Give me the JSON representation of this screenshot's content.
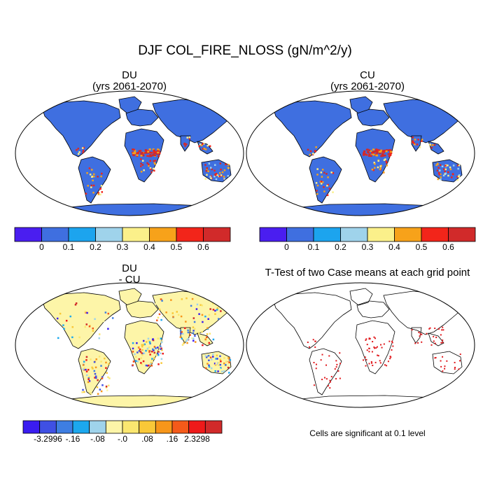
{
  "figure": {
    "title": "DJF COL_FIRE_NLOSS (gN/m^2/y)"
  },
  "panels": {
    "du": {
      "title": "DU",
      "subtitle": "(yrs 2061-2070)"
    },
    "cu": {
      "title": "CU",
      "subtitle": "(yrs 2061-2070)"
    },
    "diff": {
      "title": "DU",
      "subtitle": "- CU"
    },
    "ttest": {
      "title": "T-Test of two Case means at each grid point",
      "note": "Cells are significant at 0.1 level"
    }
  },
  "colorbars": {
    "absolute": {
      "colors": [
        "#4a1ef0",
        "#3f6fe0",
        "#1ca4ee",
        "#9fd3eb",
        "#fbf08a",
        "#f7a21a",
        "#f2251a",
        "#d12a2a"
      ],
      "labels": [
        "0",
        "0.1",
        "0.2",
        "0.3",
        "0.4",
        "0.5",
        "0.6"
      ]
    },
    "difference": {
      "colors": [
        "#3a1cf0",
        "#3f50e4",
        "#3e7ee2",
        "#1ca8ee",
        "#9fd3eb",
        "#fdf5a8",
        "#fbe770",
        "#f9c838",
        "#f7961a",
        "#f55a1a",
        "#ee1a1a",
        "#d12a2a"
      ],
      "labels": [
        "-3.2996",
        "-.16",
        "-.08",
        "-.0",
        ".08",
        ".16",
        "2.3298"
      ]
    }
  },
  "map_colors": {
    "ocean": "#ffffff",
    "du_land": "#3f6fe0",
    "diff_land": "#fdf5a8",
    "significant": "#e0181c"
  }
}
